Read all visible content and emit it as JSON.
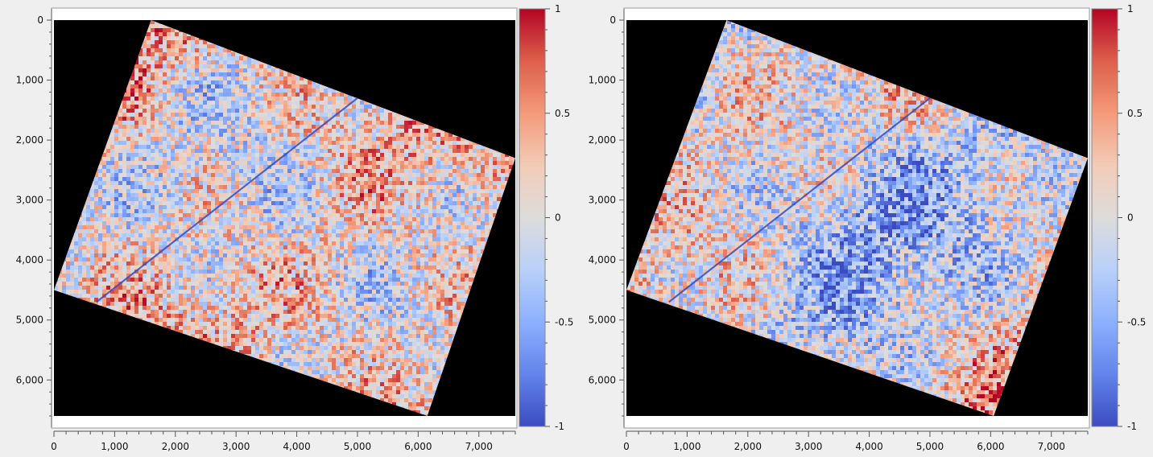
{
  "chart_data": [
    {
      "type": "heatmap",
      "title": "",
      "xlabel": "",
      "ylabel": "",
      "xlim": [
        0,
        7600
      ],
      "ylim": [
        6600,
        0
      ],
      "x_ticks": [
        0,
        1000,
        2000,
        3000,
        4000,
        5000,
        6000,
        7000
      ],
      "x_tick_labels": [
        "0",
        "1,000",
        "2,000",
        "3,000",
        "4,000",
        "5,000",
        "6,000",
        "7,000"
      ],
      "y_ticks": [
        0,
        1000,
        2000,
        3000,
        4000,
        5000,
        6000
      ],
      "y_tick_labels": [
        "0",
        "1,000",
        "2,000",
        "3,000",
        "4,000",
        "5,000",
        "6,000"
      ],
      "grid": false,
      "background_color": "#000000",
      "footprint_corners": [
        [
          1600,
          0
        ],
        [
          7600,
          2300
        ],
        [
          6150,
          6600
        ],
        [
          0,
          4500
        ]
      ],
      "colormap": "coolwarm",
      "color_range": [
        -1,
        1
      ],
      "colorbar_ticks": [
        1,
        0.5,
        0,
        -0.5,
        -1
      ],
      "colorbar_tick_labels": [
        "1",
        "0.5",
        "0",
        "-0.5",
        "-1"
      ],
      "bias": 0.05
    },
    {
      "type": "heatmap",
      "title": "",
      "xlabel": "",
      "ylabel": "",
      "xlim": [
        0,
        7600
      ],
      "ylim": [
        6600,
        0
      ],
      "x_ticks": [
        0,
        1000,
        2000,
        3000,
        4000,
        5000,
        6000,
        7000
      ],
      "x_tick_labels": [
        "0",
        "1,000",
        "2,000",
        "3,000",
        "4,000",
        "5,000",
        "6,000",
        "7,000"
      ],
      "y_ticks": [
        0,
        1000,
        2000,
        3000,
        4000,
        5000,
        6000
      ],
      "y_tick_labels": [
        "0",
        "1,000",
        "2,000",
        "3,000",
        "4,000",
        "5,000",
        "6,000"
      ],
      "grid": false,
      "background_color": "#000000",
      "footprint_corners": [
        [
          1650,
          0
        ],
        [
          7600,
          2300
        ],
        [
          6050,
          6600
        ],
        [
          0,
          4500
        ]
      ],
      "colormap": "coolwarm",
      "color_range": [
        -1,
        1
      ],
      "colorbar_ticks": [
        1,
        0.5,
        0,
        -0.5,
        -1
      ],
      "colorbar_tick_labels": [
        "1",
        "0.5",
        "0",
        "-0.5",
        "-1"
      ],
      "bias": -0.05
    }
  ]
}
